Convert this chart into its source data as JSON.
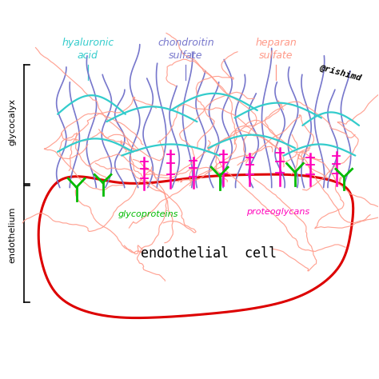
{
  "bg_color": "#ffffff",
  "cell_color": "#dd0000",
  "hyaluronic_color": "#33cccc",
  "chondroitin_color": "#7777cc",
  "heparan_color": "#ff9988",
  "salmon_color": "#ff9988",
  "proteoglycan_color": "#ff00bb",
  "glycoprotein_color": "#00bb00",
  "label_hyaluronic": "hyaluronic\nacid",
  "label_chondroitin": "chondroitin\nsulfate",
  "label_heparan": "heparan\nsulfate",
  "label_proteoglycans": "proteoglycans",
  "label_glycoproteins": "glycoproteins",
  "label_cell": "endothelial  cell",
  "label_glycocalyx": "glycocalyx",
  "label_endothelium": "endothelium",
  "label_handle": "@rishimd"
}
